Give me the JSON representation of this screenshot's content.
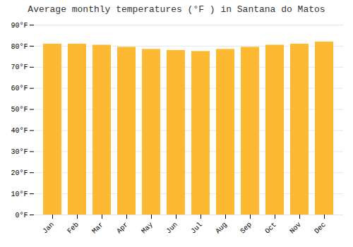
{
  "chart_data": {
    "type": "bar",
    "title": "Average monthly temperatures (°F ) in Santana do Matos",
    "categories": [
      "Jan",
      "Feb",
      "Mar",
      "Apr",
      "May",
      "Jun",
      "Jul",
      "Aug",
      "Sep",
      "Oct",
      "Nov",
      "Dec"
    ],
    "values": [
      81.0,
      81.0,
      80.5,
      79.5,
      78.5,
      78.0,
      77.5,
      78.5,
      79.5,
      80.5,
      81.0,
      82.0
    ],
    "color": "#FDB931",
    "ylim": [
      0,
      90
    ],
    "yticks": [
      {
        "value": 0,
        "label": "0°F"
      },
      {
        "value": 10,
        "label": "10°F"
      },
      {
        "value": 20,
        "label": "20°F"
      },
      {
        "value": 30,
        "label": "30°F"
      },
      {
        "value": 40,
        "label": "40°F"
      },
      {
        "value": 50,
        "label": "50°F"
      },
      {
        "value": 60,
        "label": "60°F"
      },
      {
        "value": 70,
        "label": "70°F"
      },
      {
        "value": 80,
        "label": "80°F"
      },
      {
        "value": 90,
        "label": "90°F"
      }
    ],
    "grid": true
  }
}
